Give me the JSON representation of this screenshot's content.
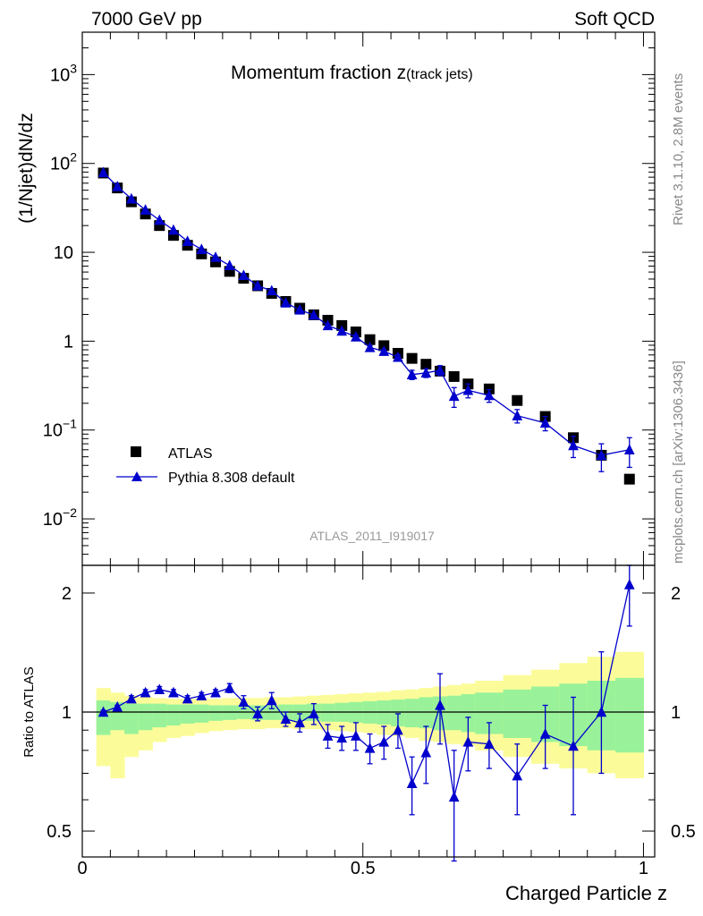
{
  "header": {
    "left": "7000 GeV pp",
    "right": "Soft QCD"
  },
  "side_labels": {
    "rivet": "Rivet 3.1.10,  2.8M events",
    "mcplots": "mcplots.cern.ch [arXiv:1306.3436]"
  },
  "chart_data": [
    {
      "type": "scatter",
      "panel": "main",
      "title_main": "Momentum fraction z",
      "title_sub": "(track jets)",
      "ylabel": "(1/Njet)dN/dz",
      "xlabel": "",
      "yscale": "log",
      "ylim": [
        0.003,
        3000
      ],
      "xlim": [
        0,
        1.02
      ],
      "yticks": [
        {
          "v": 0.01,
          "base": "10",
          "exp": "−2"
        },
        {
          "v": 0.1,
          "base": "10",
          "exp": "−1"
        },
        {
          "v": 1,
          "base": "1",
          "exp": ""
        },
        {
          "v": 10,
          "base": "10",
          "exp": ""
        },
        {
          "v": 100,
          "base": "10",
          "exp": "2"
        },
        {
          "v": 1000,
          "base": "10",
          "exp": "3"
        }
      ],
      "watermark": "ATLAS_2011_I919017",
      "legend": [
        {
          "label": "ATLAS",
          "marker": "square",
          "color": "#000000"
        },
        {
          "label": "Pythia 8.308 default",
          "marker": "triangle",
          "color": "#0000cc"
        }
      ],
      "series": [
        {
          "name": "ATLAS",
          "color": "#000000",
          "x": [
            0.0375,
            0.0625,
            0.0875,
            0.1125,
            0.1375,
            0.1625,
            0.1875,
            0.2125,
            0.2375,
            0.2625,
            0.2875,
            0.3125,
            0.3375,
            0.3625,
            0.3875,
            0.4125,
            0.4375,
            0.4625,
            0.4875,
            0.5125,
            0.5375,
            0.5625,
            0.5875,
            0.6125,
            0.6375,
            0.6625,
            0.6875,
            0.725,
            0.775,
            0.825,
            0.875,
            0.925,
            0.975
          ],
          "y": [
            78,
            53,
            37,
            27,
            20,
            15.5,
            12,
            9.6,
            7.8,
            6.1,
            5.1,
            4.2,
            3.45,
            2.8,
            2.35,
            1.98,
            1.72,
            1.5,
            1.27,
            1.04,
            0.89,
            0.73,
            0.64,
            0.55,
            0.46,
            0.4,
            0.33,
            0.29,
            0.215,
            0.142,
            0.082,
            0.052,
            0.028
          ]
        },
        {
          "name": "Pythia 8.308 default",
          "color": "#0000cc",
          "x": [
            0.0375,
            0.0625,
            0.0875,
            0.1125,
            0.1375,
            0.1625,
            0.1875,
            0.2125,
            0.2375,
            0.2625,
            0.2875,
            0.3125,
            0.3375,
            0.3625,
            0.3875,
            0.4125,
            0.4375,
            0.4625,
            0.4875,
            0.5125,
            0.5375,
            0.5625,
            0.5875,
            0.6125,
            0.6375,
            0.6625,
            0.6875,
            0.725,
            0.775,
            0.825,
            0.875,
            0.925,
            0.975
          ],
          "y": [
            79,
            55,
            40,
            30,
            23,
            17.8,
            13.3,
            10.8,
            8.8,
            7.1,
            5.5,
            4.2,
            3.7,
            2.7,
            2.25,
            1.97,
            1.5,
            1.3,
            1.12,
            0.85,
            0.77,
            0.66,
            0.42,
            0.44,
            0.47,
            0.24,
            0.28,
            0.245,
            0.145,
            0.12,
            0.067,
            0.052,
            0.06
          ],
          "yerr": [
            1,
            0.8,
            0.6,
            0.5,
            0.4,
            0.3,
            0.25,
            0.2,
            0.2,
            0.18,
            0.15,
            0.12,
            0.1,
            0.08,
            0.07,
            0.06,
            0.06,
            0.05,
            0.05,
            0.04,
            0.04,
            0.04,
            0.05,
            0.05,
            0.06,
            0.06,
            0.05,
            0.04,
            0.025,
            0.022,
            0.018,
            0.018,
            0.022
          ]
        }
      ]
    },
    {
      "type": "scatter",
      "panel": "ratio",
      "ylabel": "Ratio to ATLAS",
      "xlabel": "Charged Particle z",
      "yscale": "log",
      "ylim": [
        0.43,
        2.35
      ],
      "xlim": [
        0,
        1.02
      ],
      "yticks": [
        0.5,
        1,
        2
      ],
      "xticks": [
        0,
        0.5,
        1
      ],
      "bands": {
        "x_edges": [
          0.025,
          0.05,
          0.075,
          0.1,
          0.125,
          0.15,
          0.175,
          0.2,
          0.225,
          0.25,
          0.275,
          0.3,
          0.325,
          0.35,
          0.375,
          0.4,
          0.425,
          0.45,
          0.475,
          0.5,
          0.525,
          0.55,
          0.575,
          0.6,
          0.625,
          0.65,
          0.675,
          0.7,
          0.75,
          0.8,
          0.85,
          0.9,
          0.95,
          1.0
        ],
        "inner_color": "#99f299",
        "outer_color": "#fbfc99",
        "inner_lo": [
          0.875,
          0.9,
          0.88,
          0.9,
          0.915,
          0.925,
          0.935,
          0.94,
          0.95,
          0.955,
          0.96,
          0.955,
          0.955,
          0.955,
          0.95,
          0.95,
          0.945,
          0.945,
          0.94,
          0.935,
          0.93,
          0.92,
          0.915,
          0.91,
          0.9,
          0.9,
          0.89,
          0.88,
          0.86,
          0.84,
          0.82,
          0.8,
          0.79
        ],
        "inner_hi": [
          1.07,
          1.06,
          1.05,
          1.05,
          1.05,
          1.045,
          1.045,
          1.045,
          1.04,
          1.04,
          1.04,
          1.04,
          1.04,
          1.045,
          1.045,
          1.05,
          1.05,
          1.055,
          1.06,
          1.065,
          1.07,
          1.075,
          1.08,
          1.09,
          1.095,
          1.1,
          1.11,
          1.12,
          1.14,
          1.16,
          1.18,
          1.2,
          1.22
        ],
        "outer_lo": [
          0.73,
          0.68,
          0.77,
          0.8,
          0.84,
          0.86,
          0.87,
          0.885,
          0.895,
          0.9,
          0.905,
          0.905,
          0.91,
          0.91,
          0.905,
          0.905,
          0.9,
          0.895,
          0.89,
          0.885,
          0.875,
          0.87,
          0.86,
          0.845,
          0.84,
          0.83,
          0.82,
          0.8,
          0.77,
          0.74,
          0.72,
          0.7,
          0.68
        ],
        "outer_hi": [
          1.15,
          1.12,
          1.1,
          1.09,
          1.085,
          1.08,
          1.08,
          1.08,
          1.08,
          1.085,
          1.085,
          1.085,
          1.09,
          1.09,
          1.095,
          1.1,
          1.105,
          1.11,
          1.115,
          1.12,
          1.125,
          1.135,
          1.14,
          1.15,
          1.16,
          1.17,
          1.18,
          1.2,
          1.24,
          1.28,
          1.33,
          1.38,
          1.42
        ]
      },
      "series": [
        {
          "name": "Pythia 8.308 default",
          "color": "#0000cc",
          "x": [
            0.0375,
            0.0625,
            0.0875,
            0.1125,
            0.1375,
            0.1625,
            0.1875,
            0.2125,
            0.2375,
            0.2625,
            0.2875,
            0.3125,
            0.3375,
            0.3625,
            0.3875,
            0.4125,
            0.4375,
            0.4625,
            0.4875,
            0.5125,
            0.5375,
            0.5625,
            0.5875,
            0.6125,
            0.6375,
            0.6625,
            0.6875,
            0.725,
            0.775,
            0.825,
            0.875,
            0.925,
            0.975
          ],
          "y": [
            1.0,
            1.03,
            1.08,
            1.12,
            1.14,
            1.12,
            1.08,
            1.1,
            1.12,
            1.15,
            1.06,
            0.99,
            1.07,
            0.96,
            0.94,
            0.99,
            0.87,
            0.86,
            0.87,
            0.81,
            0.84,
            0.9,
            0.66,
            0.79,
            1.04,
            0.61,
            0.84,
            0.83,
            0.69,
            0.88,
            0.82,
            1.0,
            2.1
          ],
          "ylo": [
            0.99,
            1.02,
            1.06,
            1.1,
            1.12,
            1.1,
            1.06,
            1.08,
            1.1,
            1.12,
            1.02,
            0.95,
            1.02,
            0.92,
            0.89,
            0.93,
            0.81,
            0.8,
            0.8,
            0.74,
            0.76,
            0.81,
            0.55,
            0.66,
            0.83,
            0.42,
            0.71,
            0.72,
            0.55,
            0.72,
            0.55,
            0.7,
            1.65
          ],
          "yhi": [
            1.01,
            1.04,
            1.1,
            1.14,
            1.16,
            1.14,
            1.1,
            1.12,
            1.14,
            1.18,
            1.1,
            1.03,
            1.12,
            1.0,
            0.99,
            1.05,
            0.93,
            0.92,
            0.94,
            0.88,
            0.92,
            0.99,
            0.77,
            0.92,
            1.25,
            0.8,
            0.97,
            0.94,
            0.83,
            1.04,
            1.09,
            1.42,
            2.5
          ]
        }
      ]
    }
  ]
}
